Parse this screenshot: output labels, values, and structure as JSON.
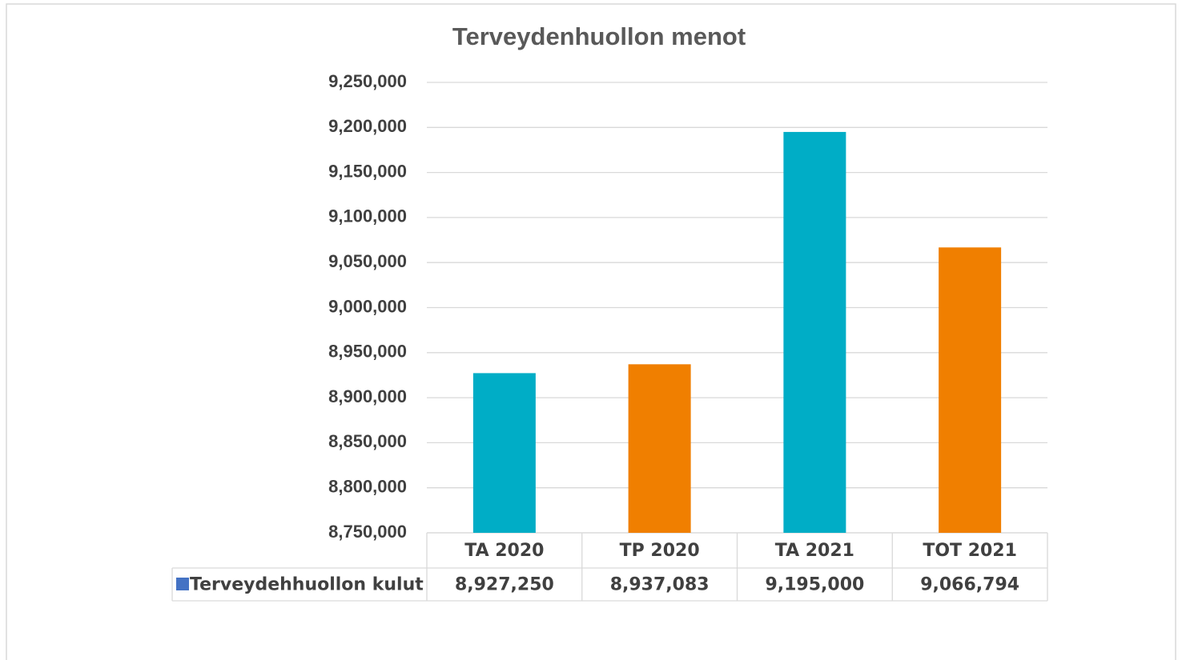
{
  "chart_data": {
    "type": "bar",
    "title": "Terveydenhuollon menot",
    "categories": [
      "TA 2020",
      "TP 2020",
      "TA 2021",
      "TOT 2021"
    ],
    "series": [
      {
        "name": "Terveydehhuollon kulut",
        "color": "#4472c4",
        "bar_colors": [
          "#00adc6",
          "#f07f00",
          "#00adc6",
          "#f07f00"
        ],
        "values": [
          8927250,
          8937083,
          9195000,
          9066794
        ],
        "value_labels": [
          "8,927,250",
          "8,937,083",
          "9,195,000",
          "9,066,794"
        ]
      }
    ],
    "ylim": [
      8750000,
      9250000
    ],
    "yticks": [
      {
        "value": 8750000,
        "label": "8,750,000"
      },
      {
        "value": 8800000,
        "label": "8,800,000"
      },
      {
        "value": 8850000,
        "label": "8,850,000"
      },
      {
        "value": 8900000,
        "label": "8,900,000"
      },
      {
        "value": 8950000,
        "label": "8,950,000"
      },
      {
        "value": 9000000,
        "label": "9,000,000"
      },
      {
        "value": 9050000,
        "label": "9,050,000"
      },
      {
        "value": 9100000,
        "label": "9,100,000"
      },
      {
        "value": 9150000,
        "label": "9,150,000"
      },
      {
        "value": 9200000,
        "label": "9,200,000"
      },
      {
        "value": 9250000,
        "label": "9,250,000"
      }
    ],
    "grid": true,
    "data_table": true
  }
}
